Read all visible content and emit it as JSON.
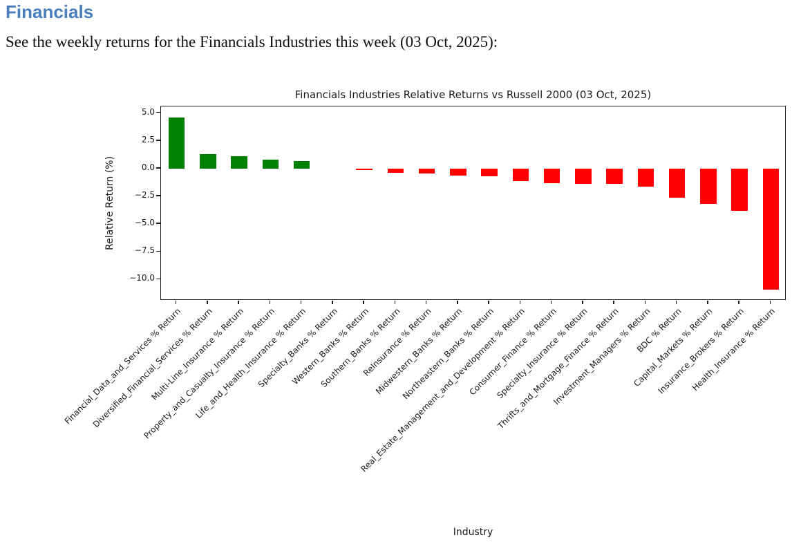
{
  "header": {
    "title": "Financials",
    "title_color": "#4a7ebb",
    "subtitle": "See the weekly returns for the Financials Industries this week (03 Oct, 2025):"
  },
  "chart_data": {
    "type": "bar",
    "title": "Financials Industries Relative Returns vs Russell 2000 (03 Oct, 2025)",
    "xlabel": "Industry",
    "ylabel": "Relative Return (%)",
    "ylim": [
      -11.9,
      5.6
    ],
    "yticks": [
      5.0,
      2.5,
      0.0,
      -2.5,
      -5.0,
      -7.5,
      -10.0
    ],
    "ytick_labels": [
      "5.0",
      "2.5",
      "0.0",
      "−2.5",
      "−5.0",
      "−7.5",
      "−10.0"
    ],
    "grid": false,
    "legend_position": "none",
    "positive_color": "#008000",
    "negative_color": "#ff0000",
    "categories": [
      "Financial_Data_and_Services % Return",
      "Diversified_Financial_Services % Return",
      "Multi-Line_Insurance % Return",
      "Property_and_Casualty_Insurance % Return",
      "Life_and_Health_Insurance % Return",
      "Specialty_Banks % Return",
      "Western_Banks % Return",
      "Southern_Banks % Return",
      "ReInsurance % Return",
      "Midwestern_Banks % Return",
      "Northeastern_Banks % Return",
      "Real_Estate_Management_and_Development % Return",
      "Consumer_Finance % Return",
      "Specialty_Insurance % Return",
      "Thrifts_and_Mortgage_Finance % Return",
      "Investment_Managers % Return",
      "BDC % Return",
      "Capital_Markets % Return",
      "Insurance_Brokers % Return",
      "Health_Insurance % Return"
    ],
    "values": [
      4.6,
      1.3,
      1.1,
      0.8,
      0.7,
      0.0,
      -0.1,
      -0.35,
      -0.45,
      -0.6,
      -0.7,
      -1.1,
      -1.3,
      -1.35,
      -1.4,
      -1.65,
      -2.6,
      -3.2,
      -3.8,
      -10.9
    ]
  }
}
